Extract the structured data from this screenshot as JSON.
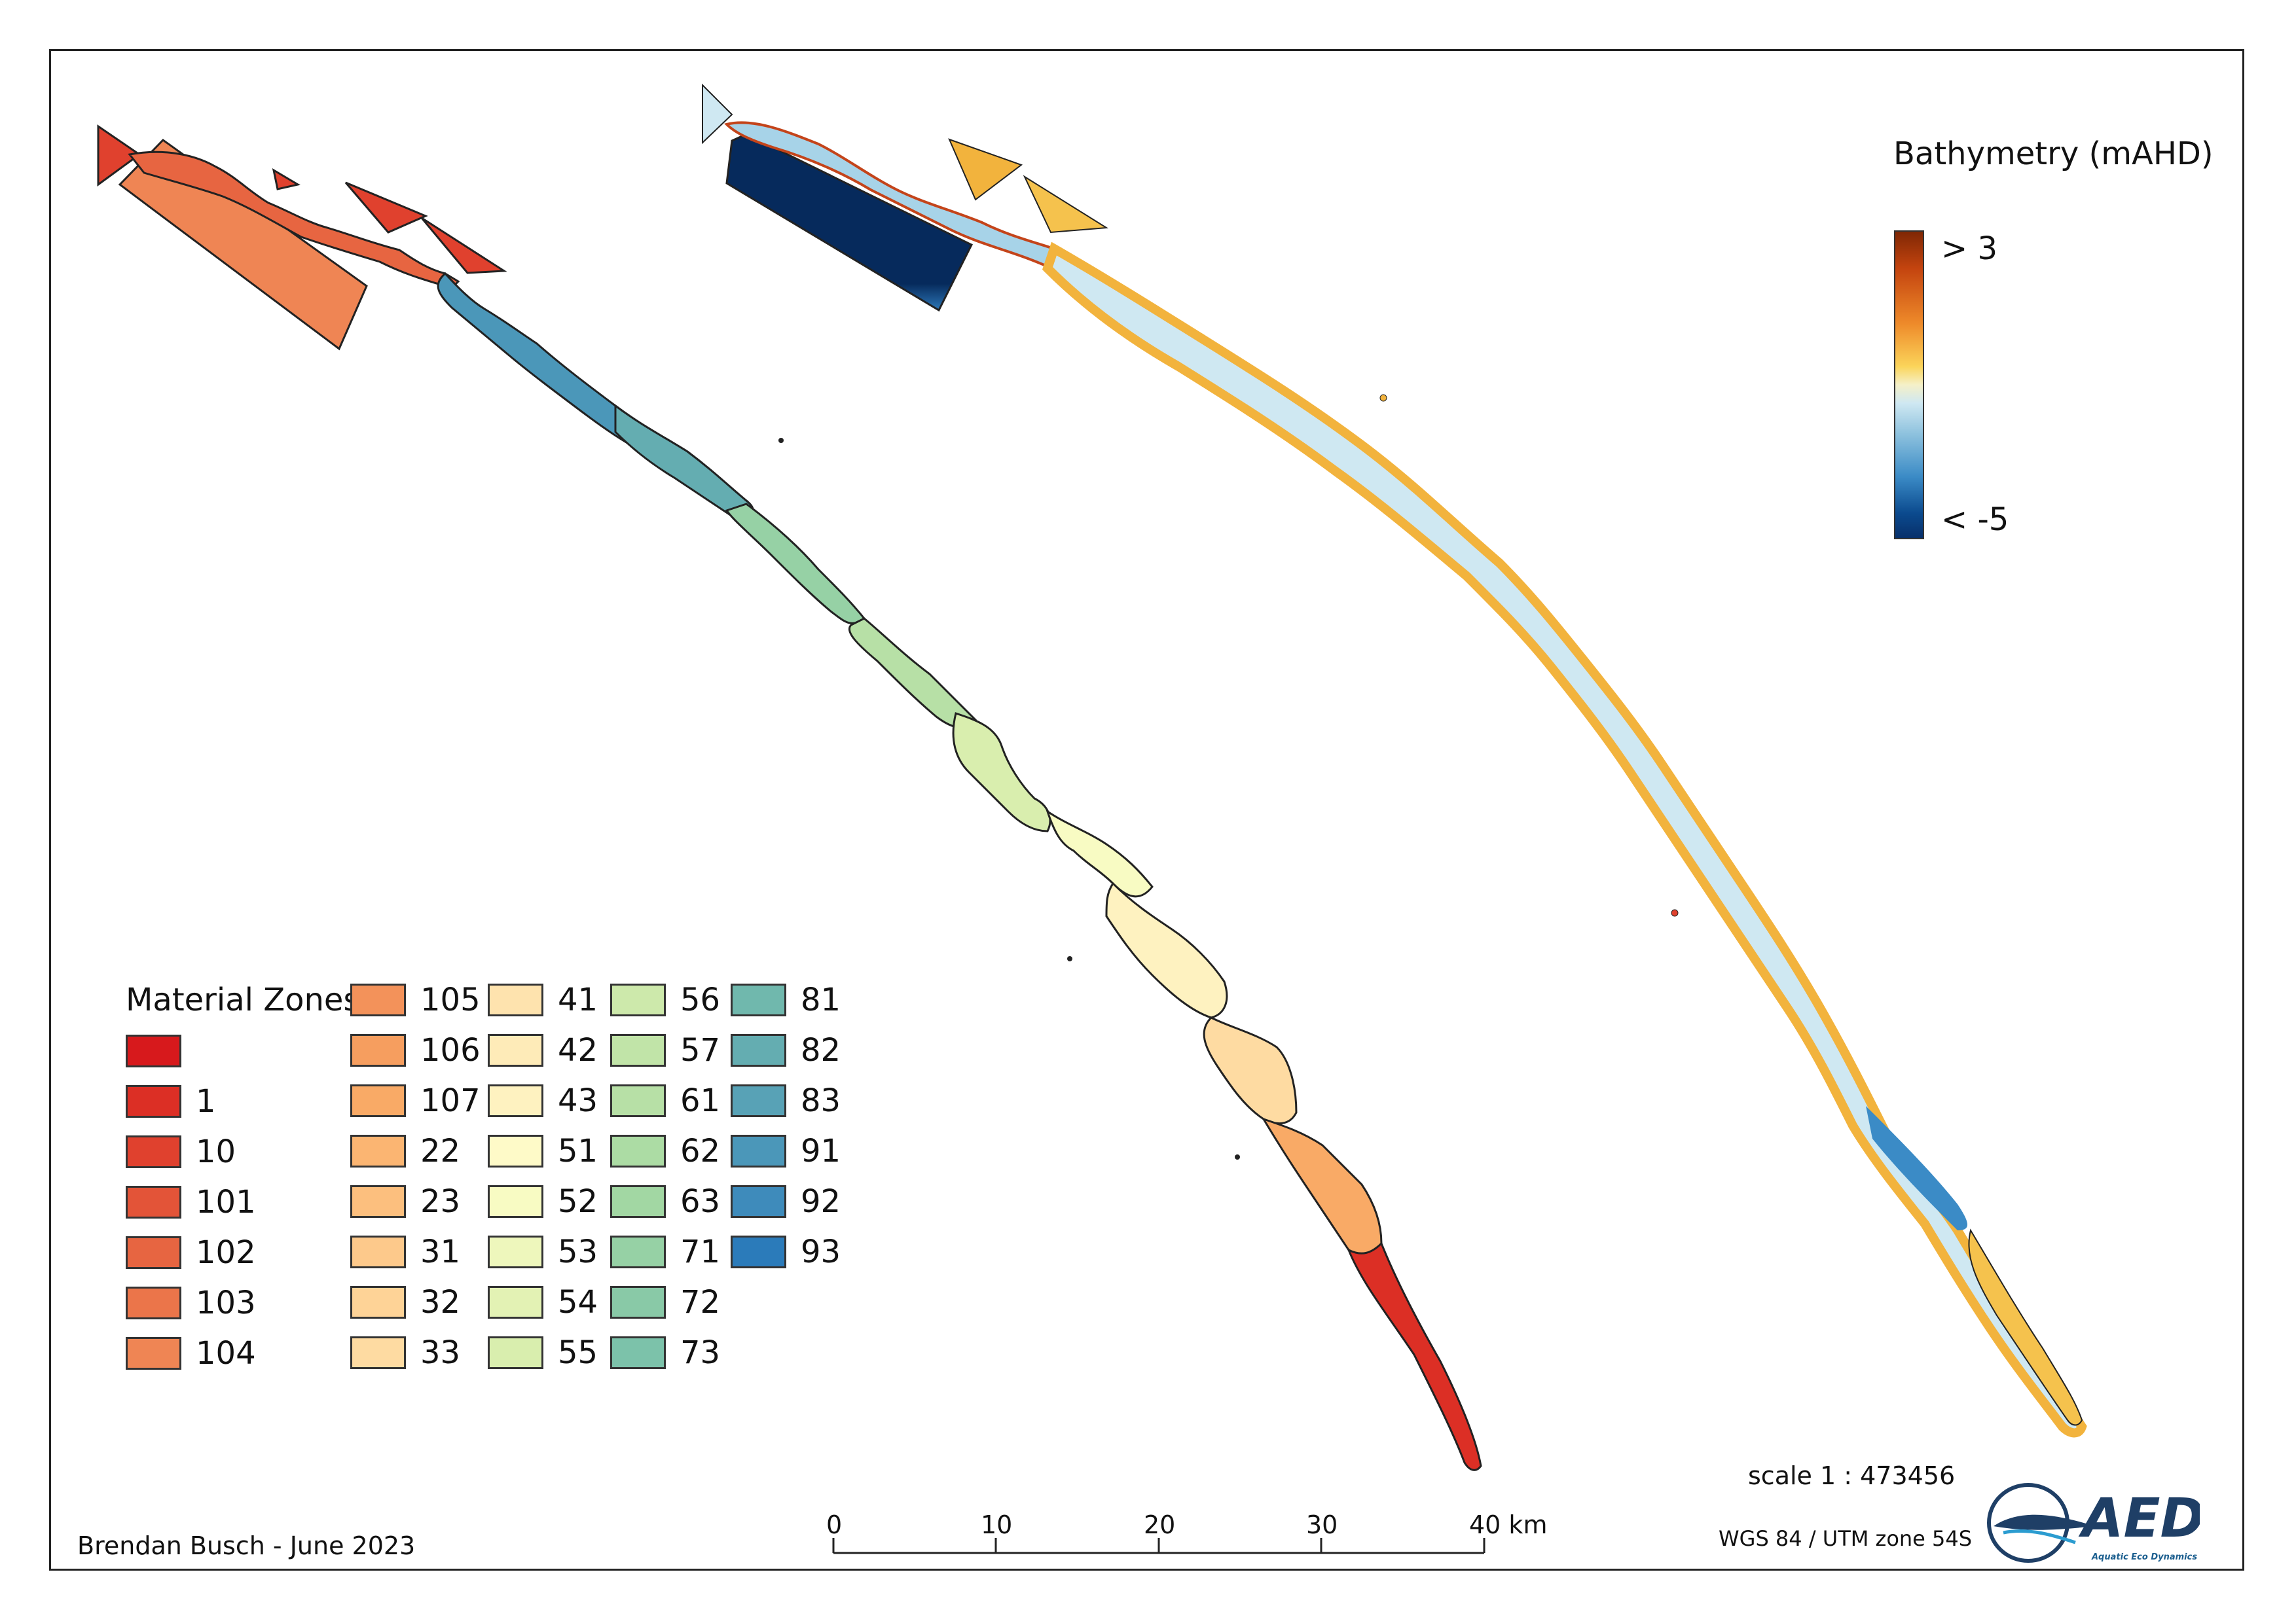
{
  "material_legend": {
    "title": "Material Zones",
    "zones": [
      {
        "label": "",
        "color": "#d7191c"
      },
      {
        "label": "1",
        "color": "#dc2f25"
      },
      {
        "label": "10",
        "color": "#e0412e"
      },
      {
        "label": "101",
        "color": "#e35438"
      },
      {
        "label": "102",
        "color": "#e76541"
      },
      {
        "label": "103",
        "color": "#eb754a"
      },
      {
        "label": "104",
        "color": "#ef8554"
      },
      {
        "label": "105",
        "color": "#f3925a"
      },
      {
        "label": "106",
        "color": "#f69e5f"
      },
      {
        "label": "107",
        "color": "#f9aa66"
      },
      {
        "label": "22",
        "color": "#fbb572"
      },
      {
        "label": "23",
        "color": "#fcbf7e"
      },
      {
        "label": "31",
        "color": "#fdc98b"
      },
      {
        "label": "32",
        "color": "#fed397"
      },
      {
        "label": "33",
        "color": "#fedba2"
      },
      {
        "label": "41",
        "color": "#fee3ae"
      },
      {
        "label": "42",
        "color": "#feebb8"
      },
      {
        "label": "43",
        "color": "#fef2c0"
      },
      {
        "label": "51",
        "color": "#fefac8"
      },
      {
        "label": "52",
        "color": "#f8fbc3"
      },
      {
        "label": "53",
        "color": "#eef7bc"
      },
      {
        "label": "54",
        "color": "#e3f2b4"
      },
      {
        "label": "55",
        "color": "#d9eeae"
      },
      {
        "label": "56",
        "color": "#cde9ab"
      },
      {
        "label": "57",
        "color": "#c1e4a8"
      },
      {
        "label": "61",
        "color": "#b7e0a6"
      },
      {
        "label": "62",
        "color": "#acdca4"
      },
      {
        "label": "63",
        "color": "#a2d7a3"
      },
      {
        "label": "71",
        "color": "#96d1a5"
      },
      {
        "label": "72",
        "color": "#89c9a7"
      },
      {
        "label": "73",
        "color": "#7cc2aa"
      },
      {
        "label": "81",
        "color": "#70b8ad"
      },
      {
        "label": "82",
        "color": "#64adb1"
      },
      {
        "label": "83",
        "color": "#58a2b6"
      },
      {
        "label": "91",
        "color": "#4b97b9"
      },
      {
        "label": "92",
        "color": "#3e8bbb"
      },
      {
        "label": "93",
        "color": "#2b7bba"
      }
    ]
  },
  "bathymetry_legend": {
    "title": "Bathymetry (mAHD)",
    "max_label": "> 3",
    "min_label": "< -5"
  },
  "scale_bar": {
    "ticks": [
      "0",
      "10",
      "20",
      "30",
      "40 km"
    ]
  },
  "scale_text": "scale 1 : 473456",
  "crs_text": "WGS 84 / UTM zone 54S",
  "author": "Brendan Busch - June 2023",
  "logo": {
    "text": "AED",
    "subtitle": "Aquatic Eco Dynamics"
  }
}
